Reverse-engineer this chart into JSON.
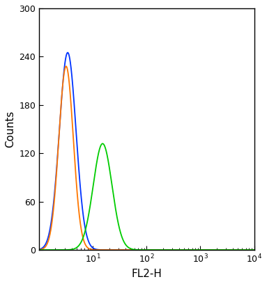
{
  "title": "",
  "xlabel": "FL2-H",
  "ylabel": "Counts",
  "xlim_log": [
    0,
    4
  ],
  "ylim": [
    0,
    300
  ],
  "yticks": [
    0,
    60,
    120,
    180,
    240,
    300
  ],
  "background_color": "#ffffff",
  "curves": [
    {
      "color": "#0033ff",
      "log_mean": 0.53,
      "log_std": 0.155,
      "peak": 245,
      "label": "blue"
    },
    {
      "color": "#ff7700",
      "log_mean": 0.5,
      "log_std": 0.135,
      "peak": 228,
      "label": "orange"
    },
    {
      "color": "#00cc00",
      "log_mean": 1.18,
      "log_std": 0.175,
      "peak": 132,
      "label": "green"
    }
  ]
}
